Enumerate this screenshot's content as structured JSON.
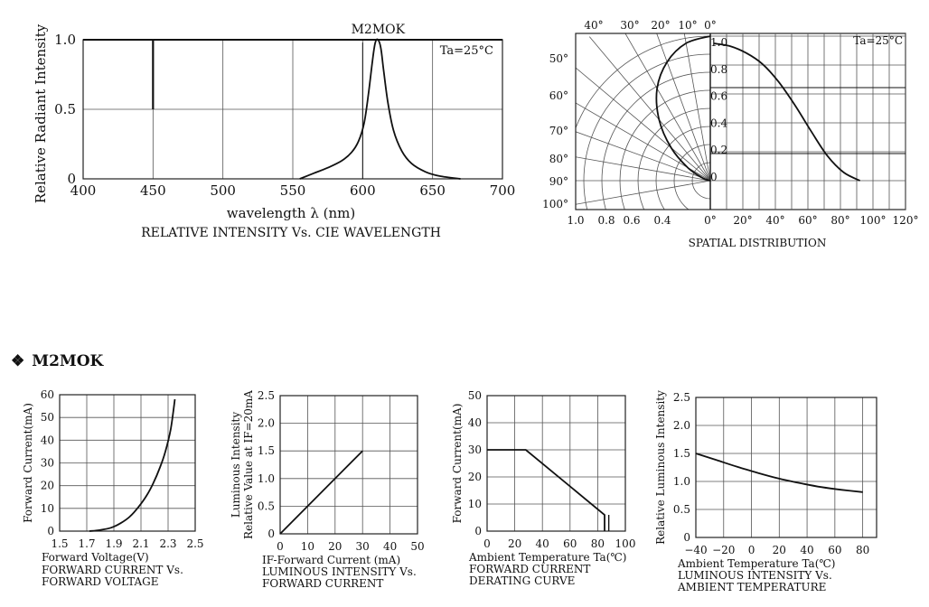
{
  "section": {
    "bullet": "❖",
    "title": "M2MOK"
  },
  "chart_data": [
    {
      "type": "line",
      "title": "RELATIVE INTENSITY Vs. CIE WAVELENGTH",
      "peak_label": "M2MOK",
      "condition": "Ta=25°C",
      "xlabel": "wavelength  λ  (nm)",
      "ylabel": "Relative Radiant Intensity",
      "xlim": [
        400,
        700
      ],
      "ylim": [
        0,
        1.0
      ],
      "x_ticks": [
        "400",
        "450",
        "500",
        "550",
        "600",
        "650",
        "700"
      ],
      "y_ticks": [
        "0",
        "0.5",
        "1.0"
      ],
      "series": [
        {
          "x": [
            555,
            565,
            575,
            585,
            592,
            597,
            601,
            604,
            607,
            609,
            611,
            613,
            615,
            618,
            622,
            628,
            635,
            645,
            655,
            670
          ],
          "y": [
            0.0,
            0.04,
            0.08,
            0.13,
            0.19,
            0.27,
            0.4,
            0.6,
            0.85,
            0.98,
            1.0,
            0.94,
            0.78,
            0.55,
            0.35,
            0.2,
            0.11,
            0.05,
            0.02,
            0.0
          ]
        }
      ],
      "marker_x": 450,
      "marker_y": [
        0.5,
        1.0
      ]
    },
    {
      "type": "line",
      "title": "SPATIAL DISTRIBUTION",
      "condition": "Ta=25°C",
      "angle_ticks_top": [
        "40°",
        "30°",
        "20°",
        "10°",
        "0°"
      ],
      "angle_ticks_left": [
        "50°",
        "60°",
        "70°",
        "80°",
        "90°",
        "100°"
      ],
      "intensity_ticks_left": [
        "1.0",
        "0.8",
        "0.6",
        "0.4"
      ],
      "axis_ticks_inner": [
        "1.0",
        "0.8",
        "0.6",
        "0.4",
        "0.2",
        "0"
      ],
      "x_ticks_right": [
        "0°",
        "20°",
        "40°",
        "60°",
        "80°",
        "100°",
        "120°"
      ],
      "series": [
        {
          "angle": [
            0,
            10,
            20,
            30,
            40,
            50,
            60,
            70,
            80,
            90
          ],
          "value": [
            1.0,
            0.98,
            0.93,
            0.85,
            0.72,
            0.55,
            0.36,
            0.18,
            0.06,
            0.0
          ]
        }
      ]
    },
    {
      "type": "line",
      "title": [
        "FORWARD CURRENT Vs.",
        "FORWARD VOLTAGE"
      ],
      "xlabel": "Forward Voltage(V)",
      "ylabel": "Forward Current(mA)",
      "xlim": [
        1.5,
        2.5
      ],
      "ylim": [
        0,
        60
      ],
      "x_ticks": [
        "1.5",
        "1.7",
        "1.9",
        "2.1",
        "2.3",
        "2.5"
      ],
      "y_ticks": [
        "0",
        "10",
        "20",
        "30",
        "40",
        "50",
        "60"
      ],
      "series": [
        {
          "x": [
            1.72,
            1.8,
            1.88,
            1.95,
            2.02,
            2.08,
            2.14,
            2.19,
            2.24,
            2.28,
            2.32,
            2.35
          ],
          "y": [
            0,
            0.5,
            1.5,
            3.5,
            6.5,
            10.5,
            15.5,
            21,
            28,
            35,
            45,
            58
          ]
        }
      ]
    },
    {
      "type": "line",
      "title": [
        "IF-Forward Current (mA)",
        "LUMINOUS INTENSITY Vs.",
        "FORWARD CURRENT"
      ],
      "ylabel": [
        "Luminous Intensity",
        "Relative Value at IF=20mA"
      ],
      "xlim": [
        0,
        50
      ],
      "ylim": [
        0,
        2.5
      ],
      "x_ticks": [
        "0",
        "10",
        "20",
        "30",
        "40",
        "50"
      ],
      "y_ticks": [
        "0",
        "0.5",
        "1.0",
        "1.5",
        "2.0",
        "2.5"
      ],
      "series": [
        {
          "x": [
            0,
            30
          ],
          "y": [
            0,
            1.5
          ]
        }
      ]
    },
    {
      "type": "line",
      "title": [
        "Ambient Temperature Ta(℃)",
        "FORWARD CURRENT",
        "DERATING CURVE"
      ],
      "ylabel": "Forward Current(mA)",
      "xlim": [
        0,
        100
      ],
      "ylim": [
        0,
        50
      ],
      "x_ticks": [
        "0",
        "20",
        "40",
        "60",
        "80",
        "100"
      ],
      "y_ticks": [
        "0",
        "10",
        "20",
        "30",
        "40",
        "50"
      ],
      "series": [
        {
          "x": [
            0,
            28,
            85,
            85
          ],
          "y": [
            30,
            30,
            6,
            0
          ]
        }
      ],
      "ref_line_x": 88
    },
    {
      "type": "line",
      "title": [
        "Ambient Temperature Ta(℃)",
        "LUMINOUS INTENSITY Vs.",
        "AMBIENT TEMPERATURE"
      ],
      "ylabel": "Relative Luminous Intensity",
      "xlim": [
        -40,
        90
      ],
      "ylim": [
        0,
        2.5
      ],
      "x_ticks": [
        "−40",
        "−20",
        "0",
        "20",
        "40",
        "60",
        "80"
      ],
      "y_ticks": [
        "0",
        "0.5",
        "1.0",
        "1.5",
        "2.0",
        "2.5"
      ],
      "series": [
        {
          "x": [
            -40,
            -25,
            -10,
            5,
            20,
            35,
            50,
            65,
            80
          ],
          "y": [
            1.5,
            1.38,
            1.26,
            1.15,
            1.05,
            0.97,
            0.9,
            0.85,
            0.81
          ]
        }
      ]
    }
  ]
}
